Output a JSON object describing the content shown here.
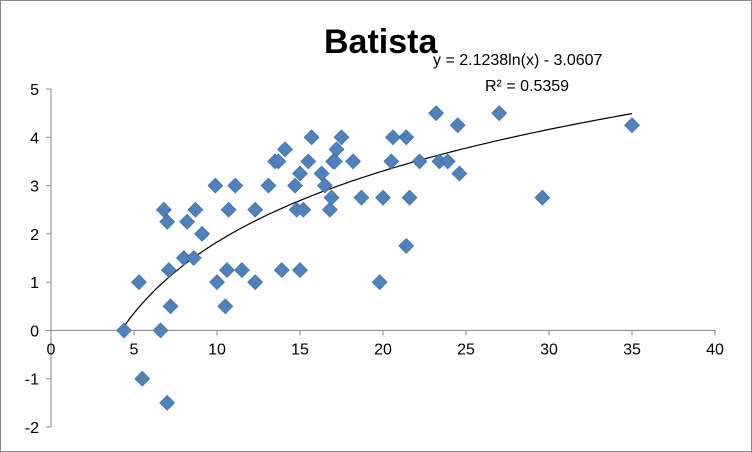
{
  "chart_data": {
    "type": "scatter",
    "title": "Batista",
    "xlabel": "",
    "ylabel": "",
    "xlim": [
      0,
      40
    ],
    "ylim": [
      -2,
      5
    ],
    "x_ticks": [
      0,
      5,
      10,
      15,
      20,
      25,
      30,
      35,
      40
    ],
    "y_ticks": [
      -2,
      -1,
      0,
      1,
      2,
      3,
      4,
      5
    ],
    "grid": false,
    "legend": "none",
    "marker_color": "#4F81BD",
    "trendline": {
      "type": "logarithmic",
      "a": 2.1238,
      "b": -3.0607,
      "x_range": [
        4.2,
        35
      ],
      "equation": "y = 2.1238ln(x) - 3.0607",
      "r_squared": "R² = 0.5359",
      "color": "#000000"
    },
    "points": [
      [
        4.4,
        0
      ],
      [
        5.3,
        1
      ],
      [
        5.5,
        -1
      ],
      [
        6.6,
        0
      ],
      [
        6.8,
        2.5
      ],
      [
        7.0,
        2.25
      ],
      [
        7.0,
        -1.5
      ],
      [
        7.1,
        1.25
      ],
      [
        7.2,
        0.5
      ],
      [
        8.0,
        1.5
      ],
      [
        8.2,
        2.25
      ],
      [
        8.6,
        1.5
      ],
      [
        8.7,
        2.5
      ],
      [
        9.1,
        2.0
      ],
      [
        9.9,
        3.0
      ],
      [
        10.0,
        1.0
      ],
      [
        10.5,
        0.5
      ],
      [
        10.6,
        1.25
      ],
      [
        10.7,
        2.5
      ],
      [
        11.1,
        3.0
      ],
      [
        11.5,
        1.25
      ],
      [
        12.3,
        2.5
      ],
      [
        12.3,
        1.0
      ],
      [
        13.1,
        3.0
      ],
      [
        13.5,
        3.5
      ],
      [
        13.7,
        3.5
      ],
      [
        13.9,
        1.25
      ],
      [
        14.1,
        3.75
      ],
      [
        14.7,
        3.0
      ],
      [
        14.8,
        2.5
      ],
      [
        15.0,
        3.25
      ],
      [
        15.0,
        1.25
      ],
      [
        15.2,
        2.5
      ],
      [
        15.5,
        3.5
      ],
      [
        15.7,
        4.0
      ],
      [
        16.3,
        3.25
      ],
      [
        16.5,
        3.0
      ],
      [
        16.8,
        2.5
      ],
      [
        16.9,
        2.75
      ],
      [
        17.0,
        3.5
      ],
      [
        17.1,
        3.5
      ],
      [
        17.2,
        3.75
      ],
      [
        17.5,
        4.0
      ],
      [
        18.2,
        3.5
      ],
      [
        18.7,
        2.75
      ],
      [
        19.8,
        1.0
      ],
      [
        20.0,
        2.75
      ],
      [
        20.5,
        3.5
      ],
      [
        20.6,
        4.0
      ],
      [
        21.4,
        4.0
      ],
      [
        21.4,
        1.75
      ],
      [
        21.6,
        2.75
      ],
      [
        22.2,
        3.5
      ],
      [
        23.2,
        4.5
      ],
      [
        23.4,
        3.5
      ],
      [
        23.9,
        3.5
      ],
      [
        24.5,
        4.25
      ],
      [
        24.6,
        3.25
      ],
      [
        27.0,
        4.5
      ],
      [
        29.6,
        2.75
      ],
      [
        35.0,
        4.25
      ]
    ]
  }
}
